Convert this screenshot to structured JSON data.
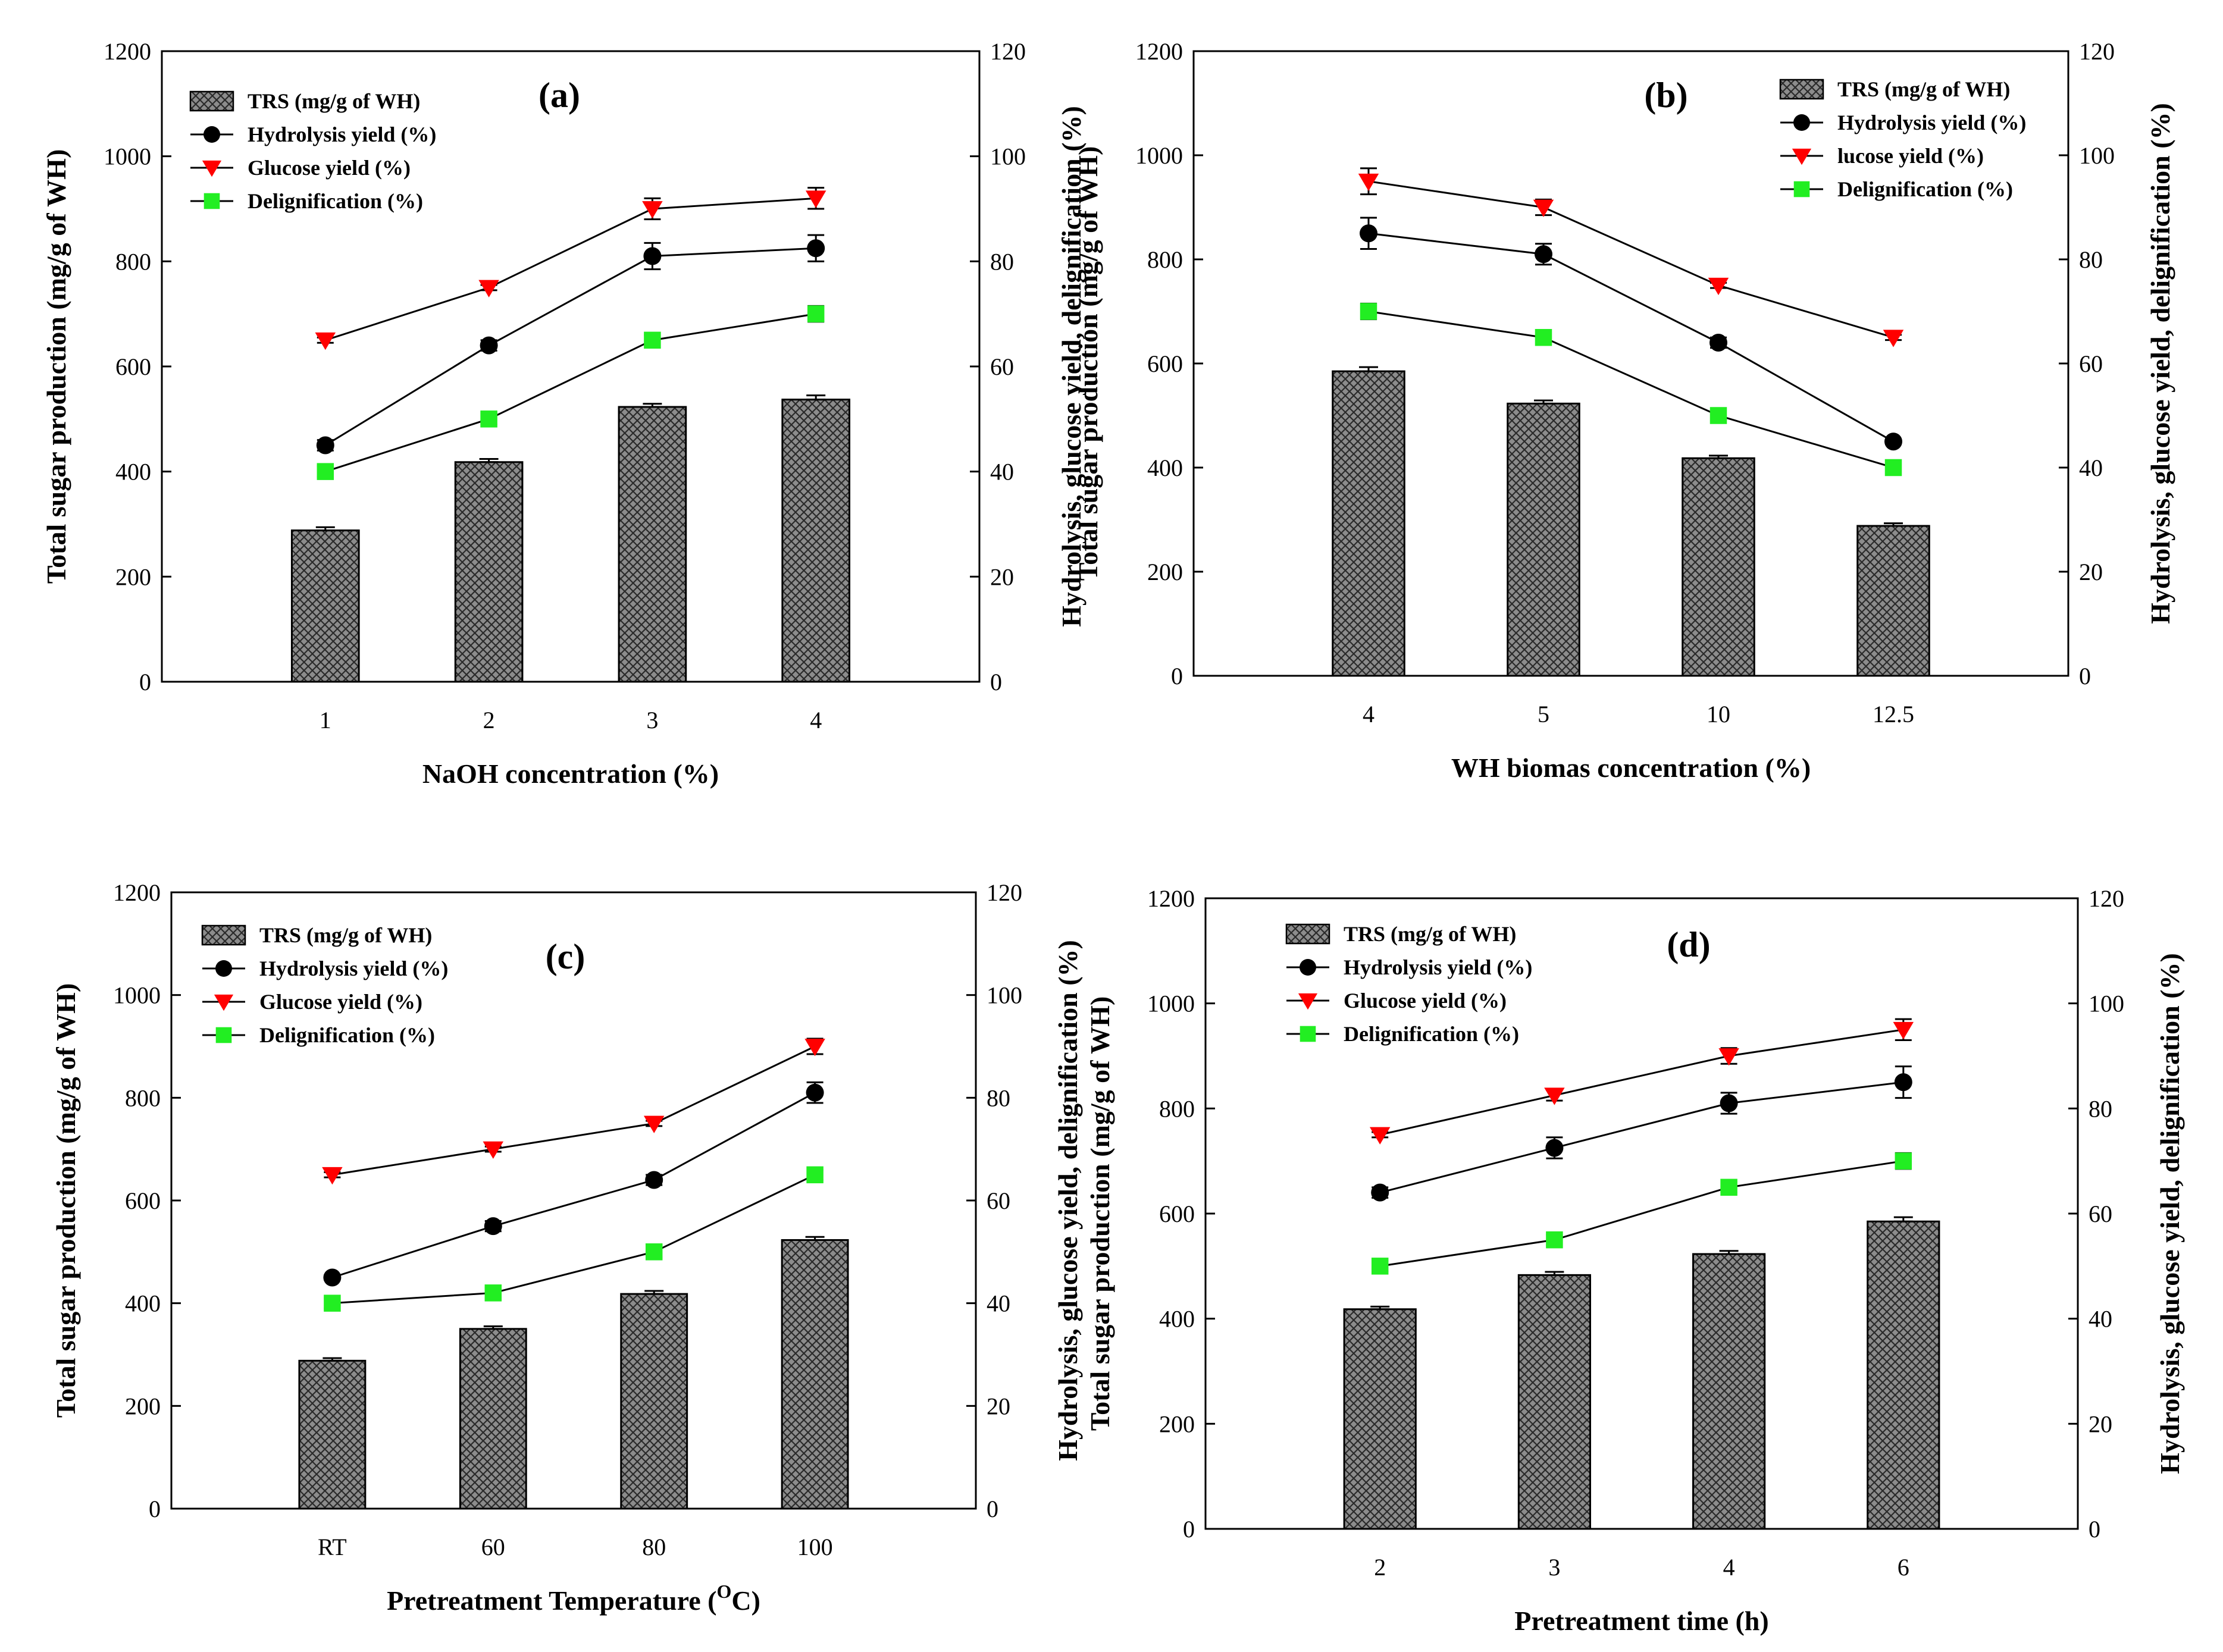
{
  "colors": {
    "bar_fill": "#8c8c8c",
    "hydrolysis": "#000000",
    "glucose": "#ff0000",
    "delignification": "#22ee22"
  },
  "chart_data": [
    {
      "type": "bar",
      "panel_label": "(a)",
      "categories": [
        "1",
        "2",
        "3",
        "4"
      ],
      "xlabel": "NaOH concentration (%)",
      "ylabel_left": "Total sugar production (mg/g of WH)",
      "ylabel_right": "Hydrolysis, glucose yield, delignification (%)",
      "ylim_left": [
        0,
        1200
      ],
      "ylim_right": [
        0,
        120
      ],
      "yticks_left": [
        "0",
        "200",
        "400",
        "600",
        "800",
        "1000",
        "1200"
      ],
      "yticks_right": [
        "0",
        "20",
        "40",
        "60",
        "80",
        "100",
        "120"
      ],
      "legend": [
        "TRS (mg/g of WH)",
        "Hydrolysis yield (%)",
        "Glucose yield (%)",
        "Delignification (%)"
      ],
      "bars": {
        "name": "TRS (mg/g of WH)",
        "values": [
          288,
          418,
          523,
          537
        ],
        "errors": [
          6,
          6,
          6,
          8
        ]
      },
      "series": [
        {
          "name": "Hydrolysis yield (%)",
          "values": [
            45,
            64,
            81,
            82.5
          ],
          "errors": [
            1,
            1,
            2.5,
            2.5
          ]
        },
        {
          "name": "Glucose yield (%)",
          "values": [
            65,
            75,
            90,
            92
          ],
          "errors": [
            0.5,
            0.5,
            2,
            2
          ]
        },
        {
          "name": "Delignification (%)",
          "values": [
            40,
            50,
            65,
            70
          ],
          "errors": [
            1,
            1,
            1,
            1.5
          ]
        }
      ]
    },
    {
      "type": "bar",
      "panel_label": "(b)",
      "categories": [
        "4",
        "5",
        "10",
        "12.5"
      ],
      "xlabel": "WH biomas concentration (%)",
      "ylabel_left": "Total sugar production (mg/g of WH)",
      "ylabel_right": "Hydrolysis, glucose yield, delignification (%)",
      "ylim_left": [
        0,
        1200
      ],
      "ylim_right": [
        0,
        120
      ],
      "yticks_left": [
        "0",
        "200",
        "400",
        "600",
        "800",
        "1000",
        "1200"
      ],
      "yticks_right": [
        "0",
        "20",
        "40",
        "60",
        "80",
        "100",
        "120"
      ],
      "legend": [
        "TRS (mg/g of WH)",
        "Hydrolysis yield (%)",
        "lucose yield (%)",
        "Delignification (%)"
      ],
      "bars": {
        "name": "TRS (mg/g of WH)",
        "values": [
          585,
          523,
          418,
          288
        ],
        "errors": [
          8,
          6,
          5,
          5
        ]
      },
      "series": [
        {
          "name": "Hydrolysis yield (%)",
          "values": [
            85,
            81,
            64,
            45
          ],
          "errors": [
            3,
            2,
            1,
            0.5
          ]
        },
        {
          "name": "lucose yield (%)",
          "values": [
            95,
            90,
            75,
            65
          ],
          "errors": [
            2.5,
            1.5,
            0.5,
            0.5
          ]
        },
        {
          "name": "Delignification (%)",
          "values": [
            70,
            65,
            50,
            40
          ],
          "errors": [
            1.5,
            1,
            1,
            1
          ]
        }
      ]
    },
    {
      "type": "bar",
      "panel_label": "(c)",
      "categories": [
        "RT",
        "60",
        "80",
        "100"
      ],
      "xlabel": "Pretreatment Temperature (",
      "xlabel_superscript": "O",
      "xlabel_suffix": "C)",
      "ylabel_left": "Total sugar production (mg/g of WH)",
      "ylabel_right": "Hydrolysis, glucose yield, delignification (%)",
      "ylim_left": [
        0,
        1200
      ],
      "ylim_right": [
        0,
        120
      ],
      "yticks_left": [
        "0",
        "200",
        "400",
        "600",
        "800",
        "1000",
        "1200"
      ],
      "yticks_right": [
        "0",
        "20",
        "40",
        "60",
        "80",
        "100",
        "120"
      ],
      "legend": [
        "TRS (mg/g of WH)",
        "Hydrolysis yield (%)",
        "Glucose yield (%)",
        "Delignification (%)"
      ],
      "bars": {
        "name": "TRS (mg/g of WH)",
        "values": [
          288,
          350,
          418,
          523
        ],
        "errors": [
          5,
          5,
          6,
          6
        ]
      },
      "series": [
        {
          "name": "Hydrolysis yield (%)",
          "values": [
            45,
            55,
            64,
            81
          ],
          "errors": [
            0.5,
            1,
            1,
            2
          ]
        },
        {
          "name": "Glucose yield (%)",
          "values": [
            65,
            70,
            75,
            90
          ],
          "errors": [
            0.5,
            0.5,
            0.5,
            1.5
          ]
        },
        {
          "name": "Delignification (%)",
          "values": [
            40,
            42,
            50,
            65
          ],
          "errors": [
            1,
            1,
            1,
            1
          ]
        }
      ]
    },
    {
      "type": "bar",
      "panel_label": "(d)",
      "categories": [
        "2",
        "3",
        "4",
        "6"
      ],
      "xlabel": "Pretreatment time (h)",
      "ylabel_left": "Total sugar production (mg/g of WH)",
      "ylabel_right": "Hydrolysis, glucose yield, delignification (%)",
      "ylim_left": [
        0,
        1200
      ],
      "ylim_right": [
        0,
        120
      ],
      "yticks_left": [
        "0",
        "200",
        "400",
        "600",
        "800",
        "1000",
        "1200"
      ],
      "yticks_right": [
        "0",
        "20",
        "40",
        "60",
        "80",
        "100",
        "120"
      ],
      "legend": [
        "TRS (mg/g of WH)",
        "Hydrolysis yield (%)",
        "Glucose yield (%)",
        "Delignification (%)"
      ],
      "bars": {
        "name": "TRS (mg/g of WH)",
        "values": [
          418,
          483,
          523,
          585
        ],
        "errors": [
          5,
          6,
          6,
          8
        ]
      },
      "series": [
        {
          "name": "Hydrolysis yield (%)",
          "values": [
            64,
            72.5,
            81,
            85
          ],
          "errors": [
            1,
            2,
            2,
            3
          ]
        },
        {
          "name": "Glucose yield (%)",
          "values": [
            75,
            82.5,
            90,
            95
          ],
          "errors": [
            0.5,
            1,
            1.5,
            2
          ]
        },
        {
          "name": "Delignification (%)",
          "values": [
            50,
            55,
            65,
            70
          ],
          "errors": [
            1,
            1,
            1,
            1.5
          ]
        }
      ]
    }
  ]
}
